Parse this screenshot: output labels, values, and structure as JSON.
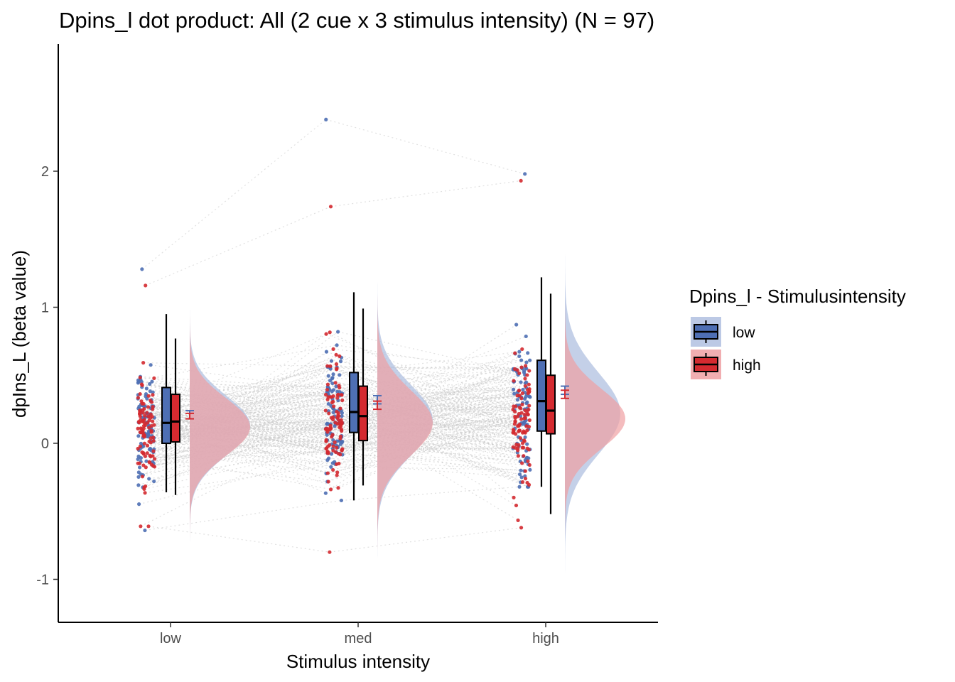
{
  "chart_data": {
    "type": "raincloud",
    "title": "Dpins_l dot product: All (2 cue x 3 stimulus intensity) (N = 97)",
    "xlabel": "Stimulus intensity",
    "ylabel": "dpIns_L  (beta value)",
    "categories": [
      "low",
      "med",
      "high"
    ],
    "y_ticks": [
      -1,
      0,
      1,
      2
    ],
    "y_tick_labels": [
      "-1",
      "0",
      "1",
      "2"
    ],
    "ylim": [
      -1.3,
      2.95
    ],
    "n": 97,
    "legend": {
      "title": "Dpins_l - Stimulusintensity",
      "placement": "right",
      "entries": [
        {
          "label": "low",
          "color": "#4E6FB4"
        },
        {
          "label": "high",
          "color": "#D42A30"
        }
      ]
    },
    "colors": {
      "low": "#4E6FB4",
      "high": "#D42A30",
      "low_fill": "#B0C0E0",
      "high_fill": "#EFA0A3",
      "connector": "#c8c8c8"
    },
    "series": [
      {
        "name": "low",
        "boxes": [
          {
            "category": "low",
            "q1": 0.0,
            "median": 0.15,
            "q3": 0.41,
            "whisker_low": -0.36,
            "whisker_high": 0.95,
            "mean": 0.21,
            "se": 0.03,
            "density_mean": 0.13,
            "density_sd": 0.22,
            "min": -0.64,
            "max": 1.28
          },
          {
            "category": "med",
            "q1": 0.08,
            "median": 0.23,
            "q3": 0.52,
            "whisker_low": -0.42,
            "whisker_high": 1.11,
            "mean": 0.32,
            "se": 0.03,
            "density_mean": 0.17,
            "density_sd": 0.26,
            "min": -0.42,
            "max": 2.38
          },
          {
            "category": "high",
            "q1": 0.09,
            "median": 0.31,
            "q3": 0.61,
            "whisker_low": -0.32,
            "whisker_high": 1.22,
            "mean": 0.39,
            "se": 0.03,
            "density_mean": 0.22,
            "density_sd": 0.3,
            "min": -0.32,
            "max": 1.98
          }
        ]
      },
      {
        "name": "high",
        "boxes": [
          {
            "category": "low",
            "q1": 0.01,
            "median": 0.16,
            "q3": 0.36,
            "whisker_low": -0.38,
            "whisker_high": 0.77,
            "mean": 0.2,
            "se": 0.02,
            "density_mean": 0.12,
            "density_sd": 0.21,
            "min": -0.61,
            "max": 1.16
          },
          {
            "category": "med",
            "q1": 0.02,
            "median": 0.2,
            "q3": 0.42,
            "whisker_low": -0.31,
            "whisker_high": 0.99,
            "mean": 0.28,
            "se": 0.03,
            "density_mean": 0.15,
            "density_sd": 0.24,
            "min": -0.8,
            "max": 1.74
          },
          {
            "category": "high",
            "q1": 0.07,
            "median": 0.24,
            "q3": 0.5,
            "whisker_low": -0.52,
            "whisker_high": 1.1,
            "mean": 0.36,
            "se": 0.03,
            "density_mean": 0.18,
            "density_sd": 0.22,
            "min": -0.62,
            "max": 1.93
          }
        ]
      }
    ]
  }
}
